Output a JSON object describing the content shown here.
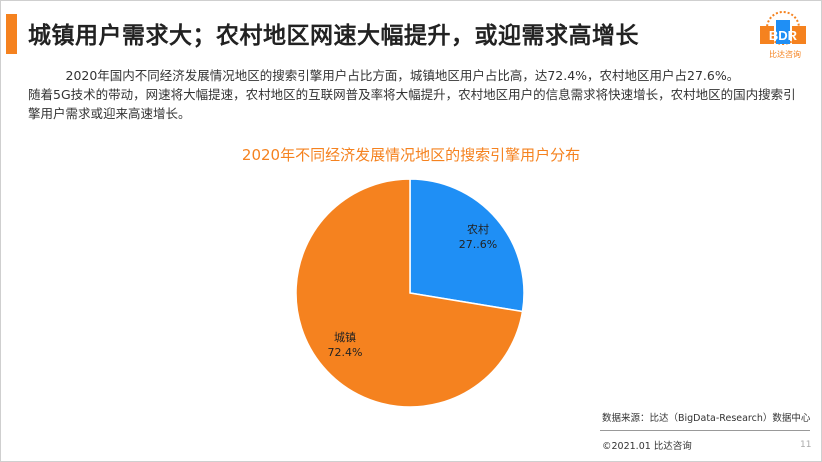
{
  "slide": {
    "title": "城镇用户需求大；农村地区网速大幅提升，或迎需求高增长",
    "paragraph_line1": "2020年国内不同经济发展情况地区的搜索引擎用户占比方面，城镇地区用户占比高，达72.4%，农村地区用户占27.6%。",
    "paragraph_line2": "随着5G技术的带动，网速将大幅提速，农村地区的互联网普及率将大幅提升，农村地区用户的信息需求将快速增长，农村地区的国内搜索引擎用户需求或迎来高速增长。",
    "source": "数据来源：比达（BigData-Research）数据中心",
    "copyright": "©2021.01 比达咨询",
    "page_number": "11"
  },
  "logo": {
    "letters": "BDR",
    "name": "比达咨询"
  },
  "colors": {
    "accent": "#f5821f",
    "rural": "#1f8ff5",
    "urban": "#f5821f"
  },
  "chart_data": {
    "type": "pie",
    "title": "2020年不同经济发展情况地区的搜索引擎用户分布",
    "slices": [
      {
        "name": "农村",
        "value": 27.6,
        "label": "27..6%",
        "color": "#1f8ff5"
      },
      {
        "name": "城镇",
        "value": 72.4,
        "label": "72.4%",
        "color": "#f5821f"
      }
    ]
  }
}
